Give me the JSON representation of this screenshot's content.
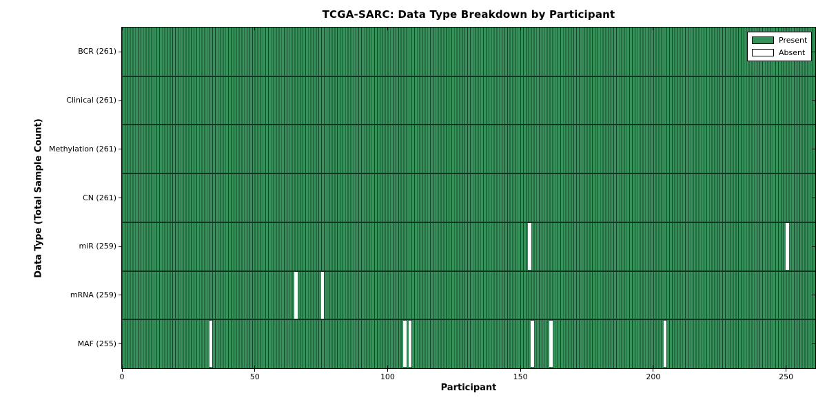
{
  "title": "TCGA-SARC: Data Type Breakdown by Participant",
  "colors": {
    "present": "#37915a",
    "present_edge": "#14452a",
    "absent": "#ffffff",
    "axis": "#000000",
    "background": "#ffffff"
  },
  "chart_data": {
    "type": "heatmap",
    "title": "TCGA-SARC: Data Type Breakdown by Participant",
    "xlabel": "Participant",
    "ylabel": "Data Type (Total Sample Count)",
    "xlim": [
      0,
      261
    ],
    "x_ticks": [
      0,
      50,
      100,
      150,
      200,
      250
    ],
    "total_participants": 261,
    "grid": false,
    "legend_position": "upper right",
    "legend": [
      {
        "label": "Present",
        "color": "#37915a"
      },
      {
        "label": "Absent",
        "color": "#ffffff"
      }
    ],
    "rows": [
      {
        "name": "bcr",
        "label": "BCR (261)",
        "count": 261,
        "absent_participants": []
      },
      {
        "name": "clinical",
        "label": "Clinical (261)",
        "count": 261,
        "absent_participants": []
      },
      {
        "name": "methylation",
        "label": "Methylation (261)",
        "count": 261,
        "absent_participants": []
      },
      {
        "name": "cn",
        "label": "CN (261)",
        "count": 261,
        "absent_participants": []
      },
      {
        "name": "mir",
        "label": "miR (259)",
        "count": 259,
        "absent_participants": [
          153,
          250
        ]
      },
      {
        "name": "mrna",
        "label": "mRNA (259)",
        "count": 259,
        "absent_participants": [
          65,
          75
        ]
      },
      {
        "name": "maf",
        "label": "MAF (255)",
        "count": 255,
        "absent_participants": [
          33,
          106,
          108,
          154,
          161,
          204
        ]
      }
    ]
  }
}
